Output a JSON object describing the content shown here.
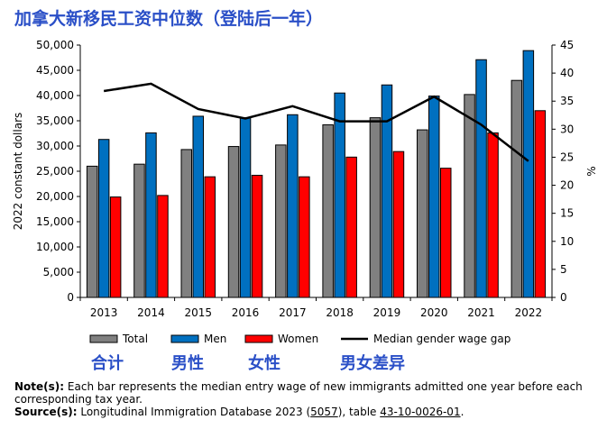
{
  "title": "加拿大新移民工资中位数（登陆后一年）",
  "annotations": {
    "total": "合计",
    "men": "男性",
    "women": "女性",
    "gap": "男女差异"
  },
  "notes": {
    "note_label": "Note(s):",
    "note_text": "Each bar represents the median entry wage of new immigrants admitted one year before each corresponding tax year.",
    "source_label": "Source(s):",
    "source_text_1": "Longitudinal Immigration Database 2023 (",
    "source_link_1": "5057",
    "source_text_2": "), table ",
    "source_link_2": "43-10-0026-01",
    "source_text_3": "."
  },
  "chart_data": {
    "type": "bar",
    "categories": [
      "2013",
      "2014",
      "2015",
      "2016",
      "2017",
      "2018",
      "2019",
      "2020",
      "2021",
      "2022"
    ],
    "series": [
      {
        "name": "Total",
        "type": "bar",
        "axis": "left",
        "color": "#808080",
        "values": [
          26000,
          26400,
          29300,
          29900,
          30200,
          34200,
          35600,
          33200,
          40200,
          43000
        ]
      },
      {
        "name": "Men",
        "type": "bar",
        "axis": "left",
        "color": "#0070c0",
        "values": [
          31300,
          32600,
          35900,
          35600,
          36200,
          40500,
          42100,
          39900,
          47100,
          48900
        ]
      },
      {
        "name": "Women",
        "type": "bar",
        "axis": "left",
        "color": "#ff0000",
        "values": [
          19900,
          20200,
          23900,
          24200,
          23900,
          27800,
          28900,
          25600,
          32600,
          37000
        ]
      },
      {
        "name": "Median gender wage gap",
        "type": "line",
        "axis": "right",
        "color": "#000000",
        "values": [
          36.8,
          38.1,
          33.6,
          31.9,
          34.1,
          31.4,
          31.4,
          35.8,
          30.8,
          24.3
        ]
      }
    ],
    "ylabel": "2022 constant dollars",
    "ylim": [
      0,
      50000
    ],
    "yticks": [
      0,
      5000,
      10000,
      15000,
      20000,
      25000,
      30000,
      35000,
      40000,
      45000,
      50000
    ],
    "ytick_labels": [
      "0",
      "5,000",
      "10,000",
      "15,000",
      "20,000",
      "25,000",
      "30,000",
      "35,000",
      "40,000",
      "45,000",
      "50,000"
    ],
    "y2label": "%",
    "y2lim": [
      0,
      45
    ],
    "y2ticks": [
      0,
      5,
      10,
      15,
      20,
      25,
      30,
      35,
      40,
      45
    ],
    "y2tick_labels": [
      "0",
      "5",
      "10",
      "15",
      "20",
      "25",
      "30",
      "35",
      "40",
      "45"
    ],
    "grid": false,
    "legend": "bottom"
  }
}
